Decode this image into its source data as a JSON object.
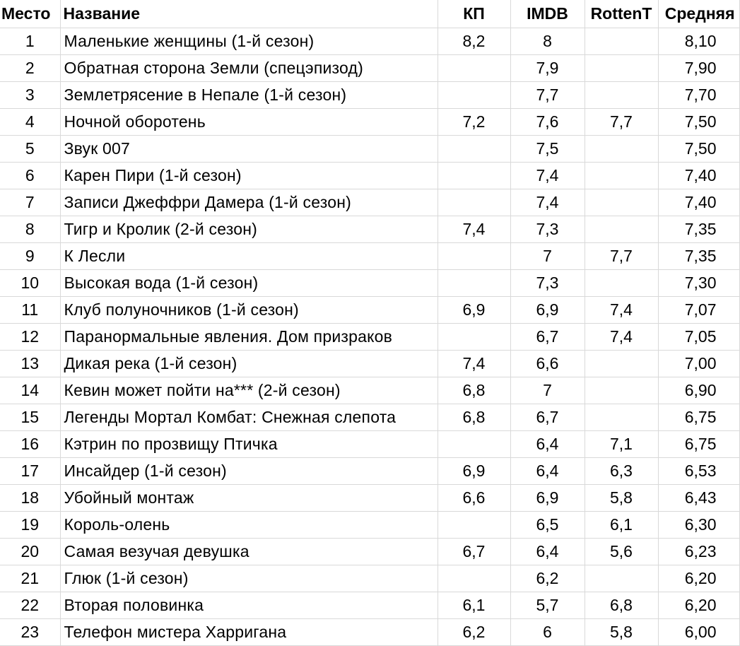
{
  "table": {
    "headers": {
      "rank": "Место",
      "title": "Название",
      "kp": "КП",
      "imdb": "IMDB",
      "rotten": "RottenT",
      "avg": "Средняя"
    },
    "rows": [
      {
        "rank": "1",
        "title": "Маленькие женщины (1-й сезон)",
        "kp": "8,2",
        "imdb": "8",
        "rotten": "",
        "avg": "8,10"
      },
      {
        "rank": "2",
        "title": "Обратная сторона Земли (спецэпизод)",
        "kp": "",
        "imdb": "7,9",
        "rotten": "",
        "avg": "7,90"
      },
      {
        "rank": "3",
        "title": "Землетрясение в Непале (1-й сезон)",
        "kp": "",
        "imdb": "7,7",
        "rotten": "",
        "avg": "7,70"
      },
      {
        "rank": "4",
        "title": "Ночной оборотень",
        "kp": "7,2",
        "imdb": "7,6",
        "rotten": "7,7",
        "avg": "7,50"
      },
      {
        "rank": "5",
        "title": "Звук 007",
        "kp": "",
        "imdb": "7,5",
        "rotten": "",
        "avg": "7,50"
      },
      {
        "rank": "6",
        "title": "Карен Пири (1-й сезон)",
        "kp": "",
        "imdb": "7,4",
        "rotten": "",
        "avg": "7,40"
      },
      {
        "rank": "7",
        "title": "Записи Джеффри Дамера (1-й сезон)",
        "kp": "",
        "imdb": "7,4",
        "rotten": "",
        "avg": "7,40"
      },
      {
        "rank": "8",
        "title": "Тигр и Кролик (2-й сезон)",
        "kp": "7,4",
        "imdb": "7,3",
        "rotten": "",
        "avg": "7,35"
      },
      {
        "rank": "9",
        "title": "К Лесли",
        "kp": "",
        "imdb": "7",
        "rotten": "7,7",
        "avg": "7,35"
      },
      {
        "rank": "10",
        "title": "Высокая вода (1-й сезон)",
        "kp": "",
        "imdb": "7,3",
        "rotten": "",
        "avg": "7,30"
      },
      {
        "rank": "11",
        "title": "Клуб полуночников (1-й сезон)",
        "kp": "6,9",
        "imdb": "6,9",
        "rotten": "7,4",
        "avg": "7,07"
      },
      {
        "rank": "12",
        "title": "Паранормальные явления. Дом призраков",
        "kp": "",
        "imdb": "6,7",
        "rotten": "7,4",
        "avg": "7,05"
      },
      {
        "rank": "13",
        "title": "Дикая река (1-й сезон)",
        "kp": "7,4",
        "imdb": "6,6",
        "rotten": "",
        "avg": "7,00"
      },
      {
        "rank": "14",
        "title": "Кевин может пойти на*** (2-й сезон)",
        "kp": "6,8",
        "imdb": "7",
        "rotten": "",
        "avg": "6,90"
      },
      {
        "rank": "15",
        "title": "Легенды Мортал Комбат: Снежная слепота",
        "kp": "6,8",
        "imdb": "6,7",
        "rotten": "",
        "avg": "6,75"
      },
      {
        "rank": "16",
        "title": "Кэтрин по прозвищу Птичка",
        "kp": "",
        "imdb": "6,4",
        "rotten": "7,1",
        "avg": "6,75"
      },
      {
        "rank": "17",
        "title": "Инсайдер (1-й сезон)",
        "kp": "6,9",
        "imdb": "6,4",
        "rotten": "6,3",
        "avg": "6,53"
      },
      {
        "rank": "18",
        "title": "Убойный монтаж",
        "kp": "6,6",
        "imdb": "6,9",
        "rotten": "5,8",
        "avg": "6,43"
      },
      {
        "rank": "19",
        "title": "Король-олень",
        "kp": "",
        "imdb": "6,5",
        "rotten": "6,1",
        "avg": "6,30"
      },
      {
        "rank": "20",
        "title": "Самая везучая девушка",
        "kp": "6,7",
        "imdb": "6,4",
        "rotten": "5,6",
        "avg": "6,23"
      },
      {
        "rank": "21",
        "title": "Глюк (1-й сезон)",
        "kp": "",
        "imdb": "6,2",
        "rotten": "",
        "avg": "6,20"
      },
      {
        "rank": "22",
        "title": "Вторая половинка",
        "kp": "6,1",
        "imdb": "5,7",
        "rotten": "6,8",
        "avg": "6,20"
      },
      {
        "rank": "23",
        "title": "Телефон мистера Харригана",
        "kp": "6,2",
        "imdb": "6",
        "rotten": "5,8",
        "avg": "6,00"
      }
    ]
  }
}
